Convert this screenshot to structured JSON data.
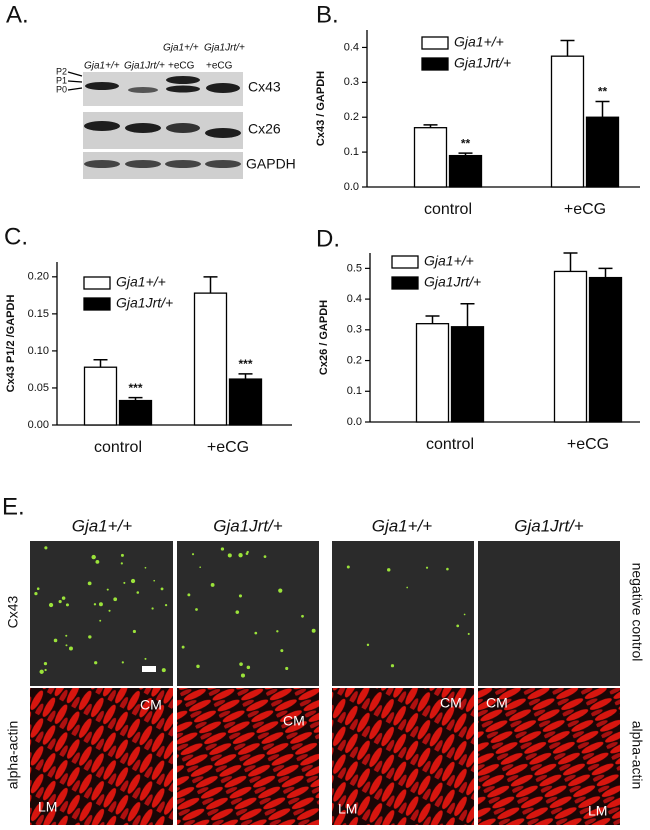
{
  "panel_a": {
    "label": "A.",
    "lanes": [
      "Gja1+/+",
      "Gja1Jrt/+",
      "Gja1+/+",
      "Gja1Jrt/+"
    ],
    "treatment": [
      "+eCG",
      "+eCG"
    ],
    "bands": [
      "P2",
      "P1",
      "P0"
    ],
    "blots": [
      "Cx43",
      "Cx26",
      "GAPDH"
    ]
  },
  "chart_data": [
    {
      "type": "bar",
      "panel_label": "B.",
      "ylabel": "Cx43 / GAPDH",
      "categories": [
        "control",
        "+eCG"
      ],
      "ylim": [
        0,
        0.45
      ],
      "yticks": [
        {
          "value": 0,
          "label": "0.0"
        },
        0.1,
        0.2,
        0.3,
        0.4
      ],
      "legend": "upper left",
      "series": [
        {
          "name": "Gja1+/+",
          "color": "#ffffff",
          "values": [
            0.17,
            0.375
          ],
          "errors": [
            0.008,
            0.045
          ]
        },
        {
          "name": "Gja1Jrt/+",
          "color": "#000000",
          "values": [
            0.09,
            0.2
          ],
          "errors": [
            0.007,
            0.045
          ],
          "significance": [
            "**",
            "**"
          ]
        }
      ]
    },
    {
      "type": "bar",
      "panel_label": "C.",
      "ylabel": "Cx43 P1/2 /GAPDH",
      "categories": [
        "control",
        "+eCG"
      ],
      "ylim": [
        0,
        0.22
      ],
      "yticks": [
        {
          "value": 0,
          "label": "0.00"
        },
        0.05,
        {
          "value": 0.1,
          "label": "0.10"
        },
        0.15,
        {
          "value": 0.2,
          "label": "0.20"
        }
      ],
      "legend": "upper left",
      "series": [
        {
          "name": "Gja1+/+",
          "color": "#ffffff",
          "values": [
            0.078,
            0.178
          ],
          "errors": [
            0.01,
            0.022
          ]
        },
        {
          "name": "Gja1Jrt/+",
          "color": "#000000",
          "values": [
            0.033,
            0.062
          ],
          "errors": [
            0.004,
            0.007
          ],
          "significance": [
            "***",
            "***"
          ]
        }
      ]
    },
    {
      "type": "bar",
      "panel_label": "D.",
      "ylabel": "Cx26 / GAPDH",
      "categories": [
        "control",
        "+eCG"
      ],
      "ylim": [
        0,
        0.55
      ],
      "yticks": [
        {
          "value": 0,
          "label": "0.0"
        },
        0.1,
        0.2,
        0.3,
        0.4,
        0.5
      ],
      "legend": "upper left",
      "series": [
        {
          "name": "Gja1+/+",
          "color": "#ffffff",
          "values": [
            0.32,
            0.49
          ],
          "errors": [
            0.025,
            0.06
          ]
        },
        {
          "name": "Gja1Jrt/+",
          "color": "#000000",
          "values": [
            0.31,
            0.47
          ],
          "errors": [
            0.075,
            0.03
          ]
        }
      ]
    }
  ],
  "panel_e": {
    "label": "E.",
    "columns": [
      "Gja1+/+",
      "Gja1Jrt/+",
      "Gja1+/+",
      "Gja1Jrt/+"
    ],
    "row_labels": [
      "Cx43",
      "alpha-actin"
    ],
    "right_labels": [
      "negative control",
      "alpha-actin"
    ],
    "tile_labels": [
      [
        "LM",
        "CM"
      ],
      [
        "CM"
      ],
      [
        "LM",
        "CM"
      ],
      [
        "CM",
        "LM"
      ]
    ]
  }
}
